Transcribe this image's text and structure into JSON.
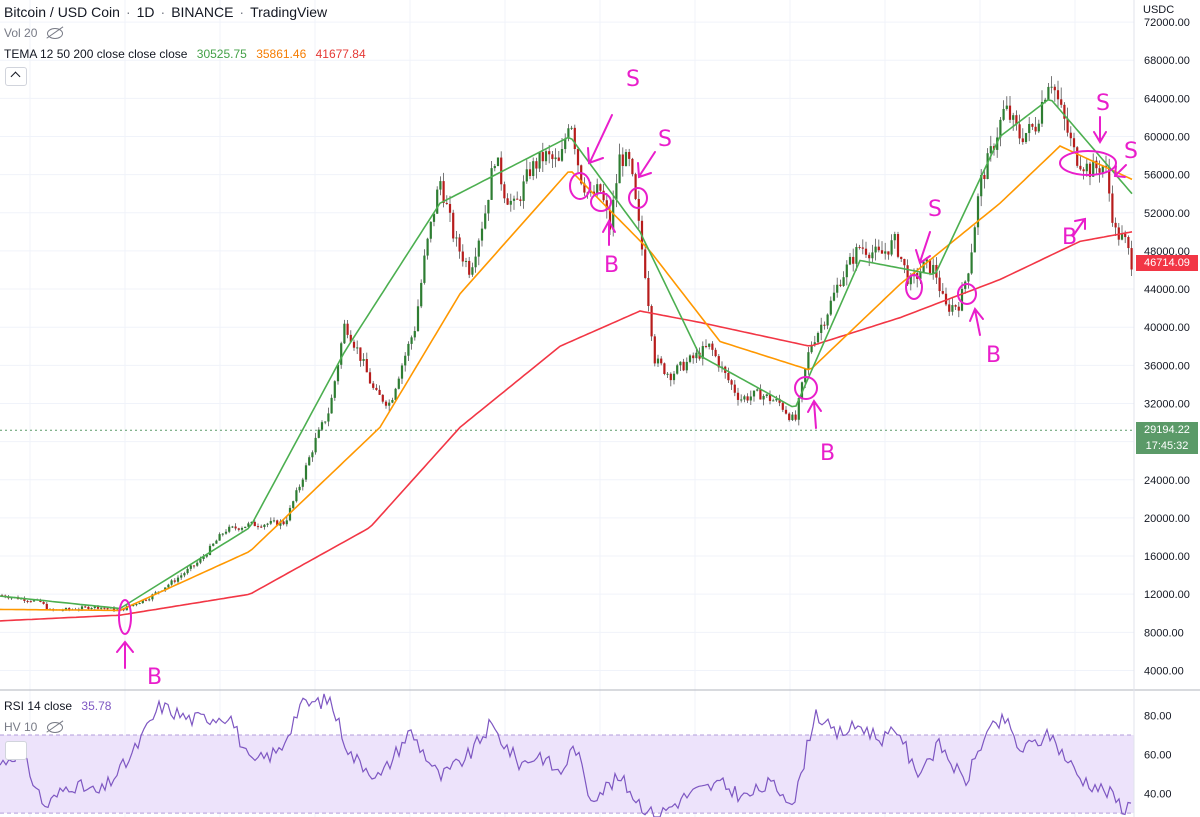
{
  "header": {
    "symbol": "Bitcoin / USD Coin",
    "sep1": "·",
    "interval": "1D",
    "sep2": "·",
    "exchange": "BINANCE",
    "sep3": "·",
    "platform": "TradingView",
    "vol_label": "Vol 20",
    "tema_label": "TEMA 12 50 200 close close close",
    "tema_values": [
      "30525.75",
      "35861.46",
      "41677.84"
    ],
    "rsi_label": "RSI 14 close",
    "rsi_value": "35.78",
    "hv_label": "HV 10"
  },
  "axis": {
    "currency": "USDC",
    "price_ticks": [
      "72000.00",
      "68000.00",
      "64000.00",
      "60000.00",
      "56000.00",
      "52000.00",
      "48000.00",
      "44000.00",
      "40000.00",
      "36000.00",
      "32000.00",
      "28000.00",
      "24000.00",
      "20000.00",
      "16000.00",
      "12000.00",
      "8000.00",
      "4000.00"
    ],
    "rsi_ticks": [
      "80.00",
      "60.00",
      "40.00"
    ],
    "last_price_red": "46714.09",
    "current_price": "29194.22",
    "countdown": "17:45:32"
  },
  "colors": {
    "up": "#26a69a",
    "down": "#ef5350",
    "candle_body_up": "#2e7d32",
    "candle_body_down": "#b71c1c",
    "tema_fast": "#4caf50",
    "tema_mid": "#ff9800",
    "tema_slow": "#f23645",
    "rsi_line": "#7e57c2",
    "rsi_band": "#ede3fb",
    "annotation": "#e91ecb",
    "tag_red": "#f23645",
    "tag_green": "#5b9a68"
  },
  "annotations": [
    {
      "text": "B"
    },
    {
      "text": "S"
    },
    {
      "text": "B"
    },
    {
      "text": "S"
    },
    {
      "text": "B"
    },
    {
      "text": "S"
    },
    {
      "text": "B"
    },
    {
      "text": "S"
    },
    {
      "text": "B"
    },
    {
      "text": "S"
    }
  ],
  "chart_data": [
    {
      "type": "candlestick",
      "title": "Bitcoin / USD Coin · 1D · BINANCE",
      "ylim": [
        3000,
        74000
      ],
      "y_scale": "linear",
      "grid": true,
      "legend": "top-left",
      "close_anchor": [
        [
          0,
          11900
        ],
        [
          40,
          11200
        ],
        [
          50,
          10300
        ],
        [
          70,
          10400
        ],
        [
          95,
          10700
        ],
        [
          120,
          10300
        ],
        [
          150,
          11700
        ],
        [
          175,
          13500
        ],
        [
          200,
          15500
        ],
        [
          225,
          18700
        ],
        [
          250,
          19300
        ],
        [
          285,
          19500
        ],
        [
          300,
          23500
        ],
        [
          315,
          28000
        ],
        [
          330,
          31500
        ],
        [
          345,
          40500
        ],
        [
          360,
          37000
        ],
        [
          375,
          33000
        ],
        [
          390,
          32000
        ],
        [
          400,
          35500
        ],
        [
          415,
          40000
        ],
        [
          425,
          47500
        ],
        [
          440,
          55500
        ],
        [
          455,
          49000
        ],
        [
          470,
          46000
        ],
        [
          485,
          52000
        ],
        [
          495,
          58000
        ],
        [
          505,
          54000
        ],
        [
          515,
          52500
        ],
        [
          530,
          56500
        ],
        [
          545,
          58000
        ],
        [
          560,
          57000
        ],
        [
          570,
          62500
        ],
        [
          580,
          56000
        ],
        [
          590,
          53500
        ],
        [
          600,
          54500
        ],
        [
          610,
          50500
        ],
        [
          620,
          58000
        ],
        [
          630,
          57000
        ],
        [
          645,
          46000
        ],
        [
          655,
          36500
        ],
        [
          670,
          35000
        ],
        [
          690,
          36500
        ],
        [
          710,
          38000
        ],
        [
          725,
          35000
        ],
        [
          740,
          32500
        ],
        [
          760,
          33000
        ],
        [
          780,
          32000
        ],
        [
          795,
          30000
        ],
        [
          810,
          38000
        ],
        [
          825,
          41000
        ],
        [
          840,
          45000
        ],
        [
          860,
          48500
        ],
        [
          880,
          47500
        ],
        [
          895,
          49000
        ],
        [
          910,
          44500
        ],
        [
          925,
          46500
        ],
        [
          935,
          46000
        ],
        [
          945,
          42000
        ],
        [
          960,
          42500
        ],
        [
          970,
          47000
        ],
        [
          980,
          55000
        ],
        [
          990,
          58000
        ],
        [
          1005,
          63000
        ],
        [
          1020,
          60000
        ],
        [
          1035,
          61000
        ],
        [
          1050,
          66500
        ],
        [
          1060,
          63000
        ],
        [
          1075,
          58000
        ],
        [
          1090,
          56500
        ],
        [
          1105,
          57000
        ],
        [
          1115,
          50000
        ],
        [
          1125,
          49000
        ],
        [
          1132,
          46714
        ]
      ],
      "tema_12": [
        [
          0,
          11800
        ],
        [
          120,
          10500
        ],
        [
          250,
          19000
        ],
        [
          345,
          37500
        ],
        [
          440,
          53000
        ],
        [
          570,
          60000
        ],
        [
          640,
          50000
        ],
        [
          700,
          37000
        ],
        [
          795,
          31500
        ],
        [
          860,
          47000
        ],
        [
          935,
          45500
        ],
        [
          1000,
          60000
        ],
        [
          1050,
          64000
        ],
        [
          1132,
          54000
        ]
      ],
      "tema_50": [
        [
          0,
          10400
        ],
        [
          120,
          10300
        ],
        [
          250,
          16500
        ],
        [
          380,
          29500
        ],
        [
          460,
          43500
        ],
        [
          570,
          56500
        ],
        [
          650,
          48000
        ],
        [
          720,
          38500
        ],
        [
          810,
          35500
        ],
        [
          900,
          44500
        ],
        [
          1000,
          53000
        ],
        [
          1060,
          59000
        ],
        [
          1132,
          55500
        ]
      ],
      "tema_200": [
        [
          0,
          9200
        ],
        [
          120,
          9800
        ],
        [
          250,
          12000
        ],
        [
          370,
          19000
        ],
        [
          460,
          29500
        ],
        [
          560,
          38000
        ],
        [
          640,
          41700
        ],
        [
          700,
          40500
        ],
        [
          810,
          38000
        ],
        [
          900,
          41000
        ],
        [
          1000,
          45000
        ],
        [
          1080,
          49000
        ],
        [
          1132,
          50000
        ]
      ]
    },
    {
      "type": "line",
      "title": "RSI 14 close",
      "ylim": [
        28,
        92
      ],
      "band": [
        30,
        70
      ],
      "values_anchor": [
        [
          0,
          55
        ],
        [
          20,
          62
        ],
        [
          45,
          33
        ],
        [
          70,
          45
        ],
        [
          100,
          40
        ],
        [
          130,
          58
        ],
        [
          160,
          85
        ],
        [
          190,
          78
        ],
        [
          230,
          80
        ],
        [
          250,
          55
        ],
        [
          280,
          62
        ],
        [
          300,
          85
        ],
        [
          330,
          88
        ],
        [
          350,
          60
        ],
        [
          380,
          48
        ],
        [
          410,
          72
        ],
        [
          440,
          48
        ],
        [
          470,
          60
        ],
        [
          490,
          75
        ],
        [
          520,
          55
        ],
        [
          540,
          60
        ],
        [
          560,
          50
        ],
        [
          575,
          65
        ],
        [
          590,
          38
        ],
        [
          620,
          48
        ],
        [
          640,
          35
        ],
        [
          655,
          28
        ],
        [
          690,
          40
        ],
        [
          720,
          45
        ],
        [
          745,
          38
        ],
        [
          770,
          45
        ],
        [
          795,
          36
        ],
        [
          815,
          82
        ],
        [
          835,
          70
        ],
        [
          860,
          75
        ],
        [
          880,
          68
        ],
        [
          900,
          72
        ],
        [
          915,
          50
        ],
        [
          940,
          65
        ],
        [
          965,
          45
        ],
        [
          985,
          70
        ],
        [
          1005,
          78
        ],
        [
          1020,
          62
        ],
        [
          1050,
          70
        ],
        [
          1080,
          48
        ],
        [
          1110,
          40
        ],
        [
          1125,
          32
        ],
        [
          1132,
          35.78
        ]
      ]
    }
  ]
}
